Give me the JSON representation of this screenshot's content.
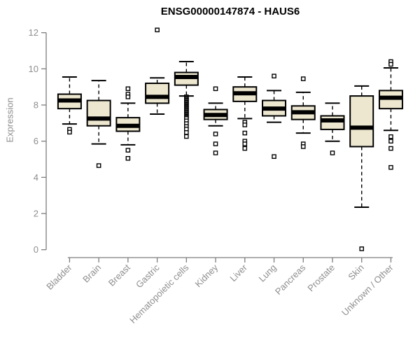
{
  "chart_data": {
    "type": "boxplot",
    "title": "ENSG00000147874 - HAUS6",
    "ylabel": "Expression",
    "ylim": [
      0,
      12
    ],
    "yticks": [
      0,
      2,
      4,
      6,
      8,
      10,
      12
    ],
    "grid": false,
    "legend": "none",
    "categories": [
      "Bladder",
      "Brain",
      "Breast",
      "Gastric",
      "Hematopoietic cells",
      "Kidney",
      "Liver",
      "Lung",
      "Pancreas",
      "Prostate",
      "Skin",
      "Unknown / Other"
    ],
    "boxes": [
      {
        "category": "Bladder",
        "low": 6.95,
        "q1": 7.8,
        "median": 8.25,
        "q3": 8.6,
        "high": 9.55,
        "outliers": [
          6.65,
          6.5
        ]
      },
      {
        "category": "Brain",
        "low": 5.85,
        "q1": 6.85,
        "median": 7.25,
        "q3": 8.25,
        "high": 9.35,
        "outliers": [
          4.65
        ]
      },
      {
        "category": "Breast",
        "low": 5.8,
        "q1": 6.55,
        "median": 6.85,
        "q3": 7.3,
        "high": 8.1,
        "outliers": [
          8.9,
          8.6,
          8.45,
          5.5,
          5.05
        ]
      },
      {
        "category": "Gastric",
        "low": 7.5,
        "q1": 8.1,
        "median": 8.45,
        "q3": 9.2,
        "high": 9.5,
        "outliers": [
          12.15
        ]
      },
      {
        "category": "Hematopoietic cells",
        "low": 8.5,
        "q1": 9.1,
        "median": 9.55,
        "q3": 9.8,
        "high": 10.4,
        "outliers": [
          8.45,
          8.39,
          8.33,
          8.27,
          8.21,
          8.15,
          8.09,
          8.03,
          7.97,
          7.91,
          7.85,
          7.79,
          7.73,
          7.67,
          7.61,
          7.55,
          7.49,
          7.43,
          7.37,
          7.31,
          7.25,
          7.12,
          6.97,
          6.81,
          6.67,
          6.48,
          6.26
        ]
      },
      {
        "category": "Kidney",
        "low": 6.85,
        "q1": 7.2,
        "median": 7.45,
        "q3": 7.75,
        "high": 8.1,
        "outliers": [
          8.9,
          6.4,
          5.85,
          5.35
        ]
      },
      {
        "category": "Liver",
        "low": 7.25,
        "q1": 8.2,
        "median": 8.65,
        "q3": 9.0,
        "high": 9.55,
        "outliers": [
          7.05,
          6.9,
          6.45,
          6.0,
          5.85,
          5.6
        ]
      },
      {
        "category": "Lung",
        "low": 7.05,
        "q1": 7.4,
        "median": 7.8,
        "q3": 8.25,
        "high": 8.8,
        "outliers": [
          9.6,
          5.15
        ]
      },
      {
        "category": "Pancreas",
        "low": 6.45,
        "q1": 7.2,
        "median": 7.6,
        "q3": 7.95,
        "high": 8.7,
        "outliers": [
          9.45,
          5.85,
          5.7
        ]
      },
      {
        "category": "Prostate",
        "low": 6.0,
        "q1": 6.65,
        "median": 7.15,
        "q3": 7.4,
        "high": 8.1,
        "outliers": [
          5.35
        ]
      },
      {
        "category": "Skin",
        "low": 2.35,
        "q1": 5.7,
        "median": 6.75,
        "q3": 8.5,
        "high": 9.05,
        "outliers": [
          0.05
        ]
      },
      {
        "category": "Unknown / Other",
        "low": 6.6,
        "q1": 7.8,
        "median": 8.4,
        "q3": 8.8,
        "high": 10.05,
        "outliers": [
          10.4,
          10.25,
          6.25,
          6.0,
          5.6,
          4.55
        ]
      }
    ],
    "colors": {
      "box_fill": "#EDE7D0",
      "box_stroke": "#000000",
      "median": "#000000",
      "whisker": "#000000",
      "outlier_fill": "#FFFFFF",
      "axis": "#7d7d7d",
      "tick_label": "#8e8e8e",
      "title": "#000000",
      "background": "#FFFFFF"
    }
  }
}
